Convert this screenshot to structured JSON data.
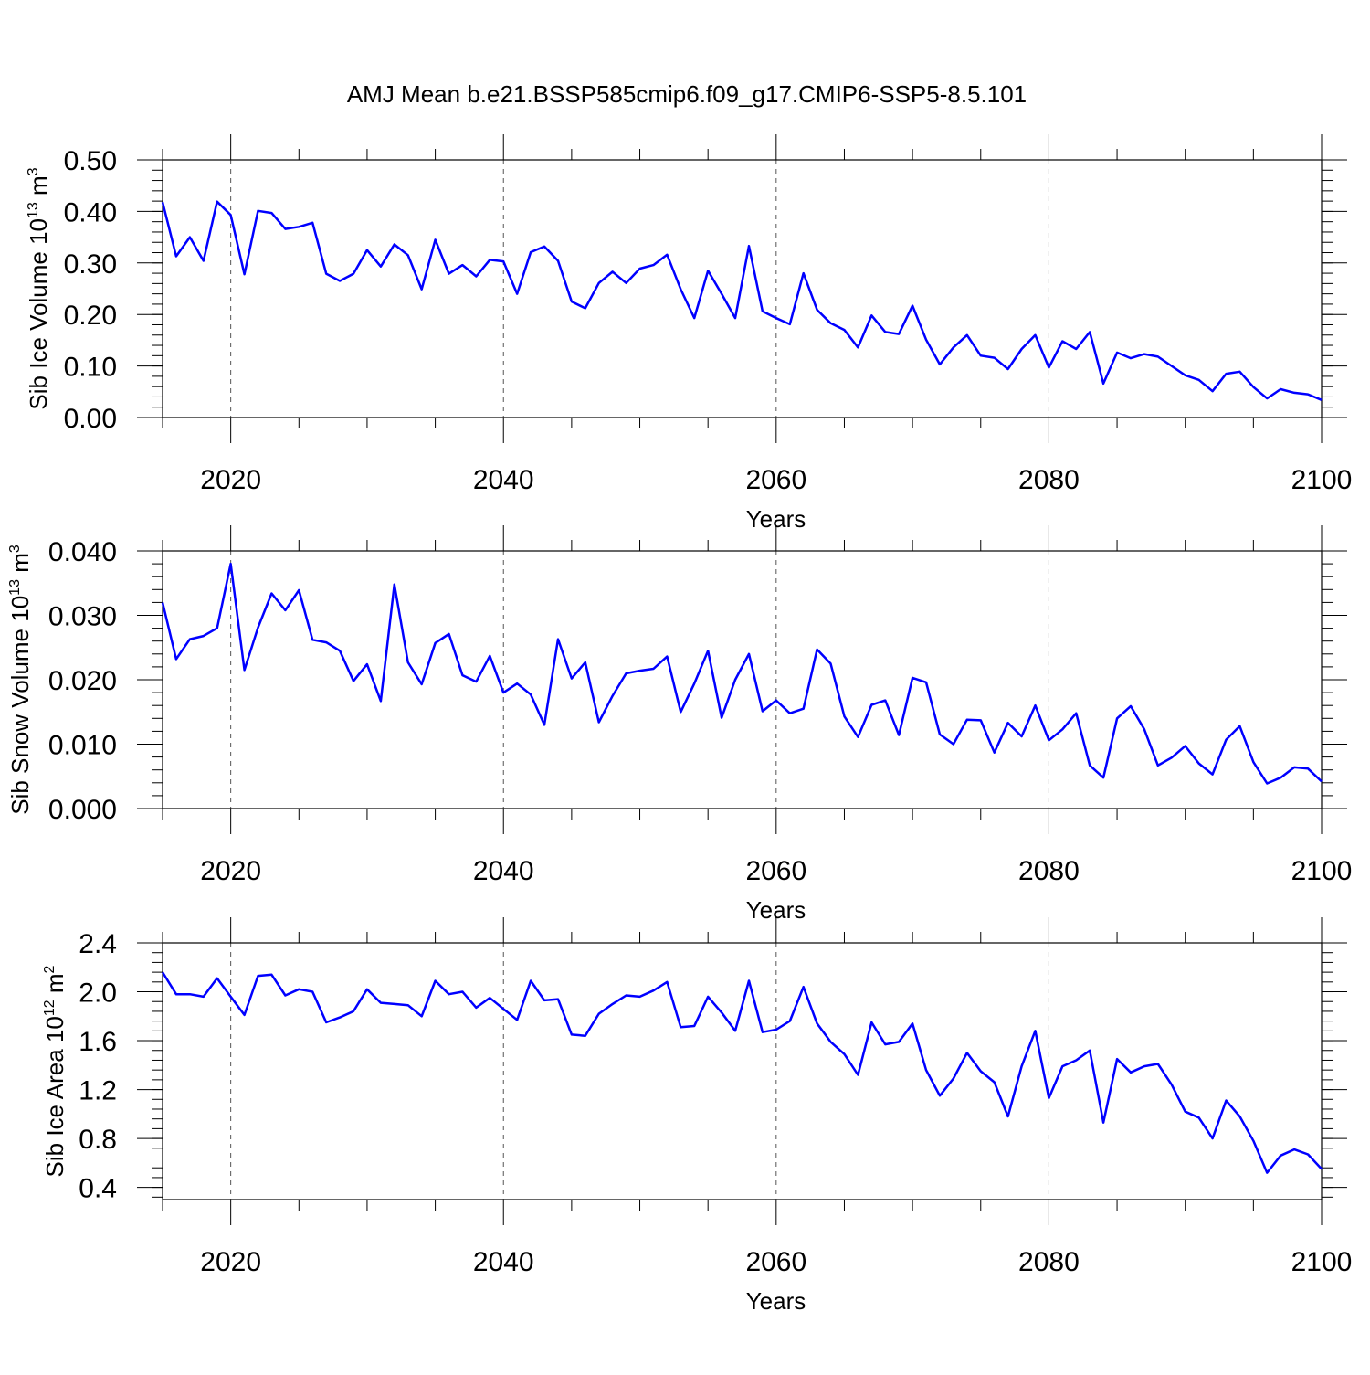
{
  "title": "AMJ Mean b.e21.BSSP585cmip6.f09_g17.CMIP6-SSP5-8.5.101",
  "line_color": "#0000ff",
  "chart_data": [
    {
      "type": "line",
      "xlabel": "Years",
      "ylabel": "Sib Ice Volume 10",
      "ylabel_exp": "13",
      "ylabel_unit": " m",
      "ylabel_unit_exp": "3",
      "xlim": [
        2015,
        2100
      ],
      "ylim": [
        0,
        0.5
      ],
      "xticks": [
        2020,
        2040,
        2060,
        2080,
        2100
      ],
      "yticks": [
        "0.00",
        "0.10",
        "0.20",
        "0.30",
        "0.40",
        "0.50"
      ],
      "ytick_values": [
        0,
        0.1,
        0.2,
        0.3,
        0.4,
        0.5
      ],
      "grid": "dashed vertical at major x ticks",
      "start_year": 2015,
      "values": [
        0.418,
        0.313,
        0.35,
        0.304,
        0.419,
        0.393,
        0.278,
        0.401,
        0.397,
        0.366,
        0.37,
        0.378,
        0.279,
        0.265,
        0.279,
        0.325,
        0.293,
        0.336,
        0.315,
        0.249,
        0.345,
        0.279,
        0.296,
        0.274,
        0.306,
        0.303,
        0.24,
        0.321,
        0.332,
        0.304,
        0.225,
        0.212,
        0.261,
        0.283,
        0.261,
        0.289,
        0.296,
        0.316,
        0.249,
        0.193,
        0.285,
        0.24,
        0.193,
        0.333,
        0.206,
        0.193,
        0.181,
        0.28,
        0.209,
        0.183,
        0.17,
        0.136,
        0.198,
        0.166,
        0.162,
        0.217,
        0.151,
        0.103,
        0.136,
        0.16,
        0.12,
        0.116,
        0.094,
        0.133,
        0.16,
        0.097,
        0.148,
        0.133,
        0.166,
        0.066,
        0.126,
        0.115,
        0.123,
        0.118,
        0.1,
        0.082,
        0.073,
        0.051,
        0.085,
        0.089,
        0.059,
        0.037,
        0.055,
        0.048,
        0.045,
        0.034
      ]
    },
    {
      "type": "line",
      "xlabel": "Years",
      "ylabel": "Sib Snow Volume 10",
      "ylabel_exp": "13",
      "ylabel_unit": " m",
      "ylabel_unit_exp": "3",
      "xlim": [
        2015,
        2100
      ],
      "ylim": [
        0,
        0.04
      ],
      "xticks": [
        2020,
        2040,
        2060,
        2080,
        2100
      ],
      "yticks": [
        "0.000",
        "0.010",
        "0.020",
        "0.030",
        "0.040"
      ],
      "ytick_values": [
        0,
        0.01,
        0.02,
        0.03,
        0.04
      ],
      "grid": "dashed vertical at major x ticks",
      "start_year": 2015,
      "values": [
        0.032,
        0.0232,
        0.0263,
        0.0268,
        0.028,
        0.038,
        0.0215,
        0.0281,
        0.0334,
        0.0308,
        0.0339,
        0.0262,
        0.0258,
        0.0245,
        0.0198,
        0.0224,
        0.0167,
        0.0348,
        0.0227,
        0.0193,
        0.0257,
        0.0271,
        0.0207,
        0.0197,
        0.0237,
        0.018,
        0.0194,
        0.0177,
        0.013,
        0.0263,
        0.0202,
        0.0227,
        0.0134,
        0.0175,
        0.021,
        0.0214,
        0.0217,
        0.0236,
        0.015,
        0.0194,
        0.0245,
        0.0141,
        0.02,
        0.024,
        0.0151,
        0.0168,
        0.0148,
        0.0155,
        0.0247,
        0.0225,
        0.0143,
        0.0111,
        0.0161,
        0.0168,
        0.0114,
        0.0203,
        0.0196,
        0.0115,
        0.01,
        0.0138,
        0.0137,
        0.0087,
        0.0133,
        0.0112,
        0.016,
        0.0106,
        0.0123,
        0.0148,
        0.0067,
        0.0048,
        0.014,
        0.0159,
        0.0123,
        0.0067,
        0.0079,
        0.0097,
        0.007,
        0.0053,
        0.0107,
        0.0128,
        0.0072,
        0.0039,
        0.0048,
        0.0064,
        0.0062,
        0.0042
      ]
    },
    {
      "type": "line",
      "xlabel": "Years",
      "ylabel": "Sib Ice Area 10",
      "ylabel_exp": "12",
      "ylabel_unit": " m",
      "ylabel_unit_exp": "2",
      "xlim": [
        2015,
        2100
      ],
      "ylim": [
        0.3,
        2.4
      ],
      "xticks": [
        2020,
        2040,
        2060,
        2080,
        2100
      ],
      "yticks": [
        "0.4",
        "0.8",
        "1.2",
        "1.6",
        "2.0",
        "2.4"
      ],
      "ytick_values": [
        0.4,
        0.8,
        1.2,
        1.6,
        2.0,
        2.4
      ],
      "grid": "dashed vertical at major x ticks",
      "start_year": 2015,
      "values": [
        2.16,
        1.98,
        1.98,
        1.96,
        2.11,
        1.96,
        1.81,
        2.13,
        2.14,
        1.97,
        2.02,
        2.0,
        1.75,
        1.79,
        1.84,
        2.02,
        1.91,
        1.9,
        1.89,
        1.8,
        2.09,
        1.98,
        2.0,
        1.87,
        1.95,
        1.86,
        1.77,
        2.09,
        1.93,
        1.94,
        1.65,
        1.64,
        1.82,
        1.9,
        1.97,
        1.96,
        2.01,
        2.08,
        1.71,
        1.72,
        1.96,
        1.83,
        1.68,
        2.09,
        1.67,
        1.69,
        1.76,
        2.04,
        1.74,
        1.59,
        1.49,
        1.32,
        1.75,
        1.57,
        1.59,
        1.74,
        1.36,
        1.15,
        1.29,
        1.5,
        1.35,
        1.26,
        0.98,
        1.39,
        1.68,
        1.13,
        1.39,
        1.44,
        1.52,
        0.93,
        1.45,
        1.34,
        1.39,
        1.41,
        1.24,
        1.02,
        0.97,
        0.8,
        1.11,
        0.98,
        0.78,
        0.52,
        0.66,
        0.71,
        0.67,
        0.55
      ]
    }
  ]
}
